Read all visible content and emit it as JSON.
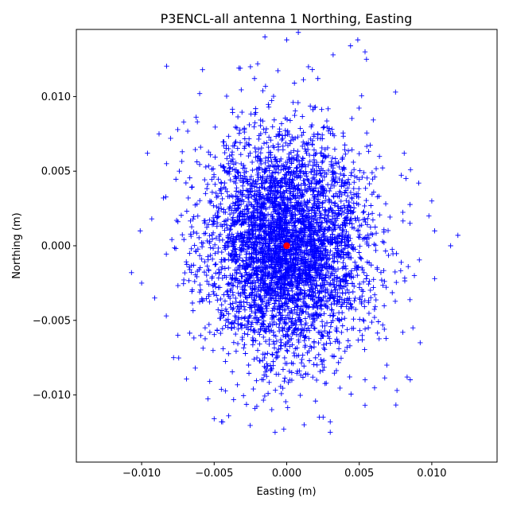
{
  "chart_data": {
    "type": "scatter",
    "title": "P3ENCL-all antenna 1 Northing, Easting",
    "xlabel": "Easting (m)",
    "ylabel": "Northing (m)",
    "xlim": [
      -0.0145,
      0.0145
    ],
    "ylim": [
      -0.0145,
      0.0145
    ],
    "xticks": [
      -0.01,
      -0.005,
      0.0,
      0.005,
      0.01
    ],
    "xtick_labels": [
      "−0.010",
      "−0.005",
      "0.000",
      "0.005",
      "0.010"
    ],
    "yticks": [
      -0.01,
      -0.005,
      0.0,
      0.005,
      0.01
    ],
    "ytick_labels": [
      "−0.010",
      "−0.005",
      "0.000",
      "0.005",
      "0.010"
    ],
    "grid": false,
    "legend": "none",
    "series": [
      {
        "marker": "+",
        "color": "#0000ff",
        "description_of_cloud": {
          "center": [
            0.0,
            0.0
          ],
          "sd_easting_approx": 0.0028,
          "sd_northing_approx": 0.0038,
          "easting_extent": [
            -0.0107,
            0.0118
          ],
          "northing_extent": [
            -0.0125,
            0.0145
          ]
        },
        "outlier_points": [
          [
            0.0118,
            0.0007
          ],
          [
            0.0113,
            0.0
          ],
          [
            0.0102,
            0.001
          ],
          [
            0.01,
            0.003
          ],
          [
            0.0098,
            0.002
          ],
          [
            0.0102,
            -0.0022
          ],
          [
            0.0092,
            -0.0065
          ],
          [
            0.0091,
            0.0042
          ],
          [
            0.0087,
            -0.0055
          ],
          [
            0.0083,
            -0.0088
          ],
          [
            0.0076,
            -0.0097
          ],
          [
            0.0075,
            0.0103
          ],
          [
            0.0069,
            -0.008
          ],
          [
            0.0054,
            0.013
          ],
          [
            0.0055,
            0.0125
          ],
          [
            0.0054,
            -0.0107
          ],
          [
            0.0049,
            0.0138
          ],
          [
            0.0044,
            0.0134
          ],
          [
            0.003,
            -0.0118
          ],
          [
            0.003,
            -0.0125
          ],
          [
            0.0032,
            0.0128
          ],
          [
            0.0015,
            0.012
          ],
          [
            0.0012,
            -0.012
          ],
          [
            0.0008,
            0.0143
          ],
          [
            0.0,
            0.0138
          ],
          [
            -0.0002,
            -0.0123
          ],
          [
            -0.0008,
            -0.0125
          ],
          [
            -0.0015,
            0.014
          ],
          [
            -0.002,
            0.0122
          ],
          [
            -0.0025,
            0.012
          ],
          [
            -0.0032,
            0.0119
          ],
          [
            -0.004,
            -0.0114
          ],
          [
            -0.0045,
            -0.0118
          ],
          [
            -0.005,
            -0.0116
          ],
          [
            -0.0058,
            0.0118
          ],
          [
            -0.006,
            0.0102
          ],
          [
            -0.0063,
            -0.0082
          ],
          [
            -0.0071,
            0.0083
          ],
          [
            -0.0074,
            0.005
          ],
          [
            -0.0078,
            -0.0075
          ],
          [
            -0.008,
            0.0072
          ],
          [
            -0.0083,
            -0.0047
          ],
          [
            -0.0085,
            0.0032
          ],
          [
            -0.0088,
            0.0075
          ],
          [
            -0.0091,
            -0.0035
          ],
          [
            -0.0093,
            0.0018
          ],
          [
            -0.0096,
            0.0062
          ],
          [
            -0.01,
            -0.0025
          ],
          [
            -0.0101,
            0.001
          ],
          [
            -0.0107,
            -0.0018
          ],
          [
            0.0085,
            0.0015
          ],
          [
            0.0088,
            -0.002
          ],
          [
            0.008,
            -0.0058
          ],
          [
            0.0081,
            0.0062
          ],
          [
            -0.0075,
            -0.006
          ],
          [
            -0.0072,
            0.0063
          ]
        ]
      },
      {
        "marker": "o",
        "color": "#ff0000",
        "points": [
          [
            0.0,
            0.0
          ]
        ]
      }
    ]
  }
}
